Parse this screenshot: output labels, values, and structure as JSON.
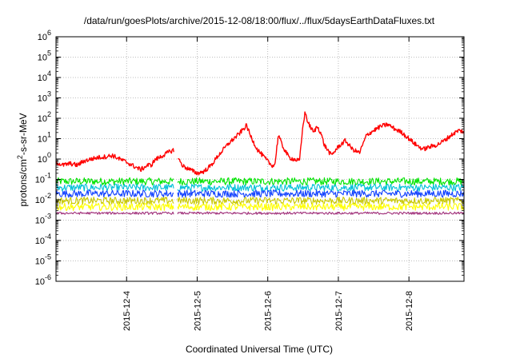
{
  "chart_data": {
    "type": "line",
    "title": "/data/run/goesPlots/archive/2015-12-08/18:00/flux/../flux/5daysEarthDataFluxes.txt",
    "xlabel": "Coordinated Universal Time (UTC)",
    "ylabel_parts": [
      "protons/cm",
      "2",
      "-s-sr-MeV"
    ],
    "yscale": "log",
    "ylim": [
      1e-06,
      1000000.0
    ],
    "xlim": [
      3.0,
      8.78
    ],
    "x_unit": "day of December 2015",
    "grid": true,
    "x_ticks": [
      {
        "x": 4,
        "label": "2015-12-4"
      },
      {
        "x": 5,
        "label": "2015-12-5"
      },
      {
        "x": 6,
        "label": "2015-12-6"
      },
      {
        "x": 7,
        "label": "2015-12-7"
      },
      {
        "x": 8,
        "label": "2015-12-8"
      }
    ],
    "y_ticks": [
      {
        "exp": -6,
        "value": 1e-06
      },
      {
        "exp": -5,
        "value": 1e-05
      },
      {
        "exp": -4,
        "value": 0.0001
      },
      {
        "exp": -3,
        "value": 0.001
      },
      {
        "exp": -2,
        "value": 0.01
      },
      {
        "exp": -1,
        "value": 0.1
      },
      {
        "exp": 0,
        "value": 1.0
      },
      {
        "exp": 1,
        "value": 10.0
      },
      {
        "exp": 2,
        "value": 100.0
      },
      {
        "exp": 3,
        "value": 1000.0
      },
      {
        "exp": 4,
        "value": 10000.0
      },
      {
        "exp": 5,
        "value": 100000.0
      },
      {
        "exp": 6,
        "value": 1000000.0
      }
    ],
    "data_gap": [
      4.67,
      4.72
    ],
    "series": [
      {
        "color": "#00e400",
        "noisy": true,
        "points": [
          [
            3.0,
            0.08
          ],
          [
            4.0,
            0.08
          ],
          [
            5.0,
            0.08
          ],
          [
            6.0,
            0.08
          ],
          [
            7.0,
            0.08
          ],
          [
            8.0,
            0.08
          ],
          [
            8.78,
            0.08
          ]
        ]
      },
      {
        "color": "#00c0d8",
        "noisy": true,
        "points": [
          [
            3.0,
            0.04
          ],
          [
            4.0,
            0.04
          ],
          [
            5.0,
            0.04
          ],
          [
            6.0,
            0.04
          ],
          [
            7.0,
            0.04
          ],
          [
            8.0,
            0.04
          ],
          [
            8.78,
            0.04
          ]
        ]
      },
      {
        "color": "#1040ff",
        "noisy": true,
        "points": [
          [
            3.0,
            0.02
          ],
          [
            4.0,
            0.02
          ],
          [
            5.0,
            0.02
          ],
          [
            6.0,
            0.02
          ],
          [
            7.0,
            0.02
          ],
          [
            8.0,
            0.02
          ],
          [
            8.78,
            0.02
          ]
        ]
      },
      {
        "color": "#c8c800",
        "noisy": true,
        "points": [
          [
            3.0,
            0.009
          ],
          [
            4.0,
            0.009
          ],
          [
            5.0,
            0.009
          ],
          [
            6.0,
            0.009
          ],
          [
            7.0,
            0.009
          ],
          [
            8.0,
            0.009
          ],
          [
            8.78,
            0.009
          ]
        ]
      },
      {
        "color": "#ffff00",
        "noisy": true,
        "points": [
          [
            3.0,
            0.0045
          ],
          [
            4.0,
            0.0045
          ],
          [
            5.0,
            0.0045
          ],
          [
            6.0,
            0.0045
          ],
          [
            7.0,
            0.0045
          ],
          [
            8.0,
            0.0045
          ],
          [
            8.78,
            0.0045
          ]
        ]
      },
      {
        "color": "#a0307a",
        "noisy": true,
        "points": [
          [
            3.0,
            0.0022
          ],
          [
            4.0,
            0.0022
          ],
          [
            5.0,
            0.0022
          ],
          [
            6.0,
            0.0022
          ],
          [
            7.0,
            0.0022
          ],
          [
            8.0,
            0.0022
          ],
          [
            8.78,
            0.0022
          ]
        ]
      },
      {
        "color": "#ff0000",
        "noisy": false,
        "points": [
          [
            3.0,
            0.7
          ],
          [
            3.1,
            0.5
          ],
          [
            3.2,
            0.6
          ],
          [
            3.3,
            0.5
          ],
          [
            3.4,
            0.8
          ],
          [
            3.5,
            1.0
          ],
          [
            3.6,
            1.2
          ],
          [
            3.7,
            1.3
          ],
          [
            3.8,
            1.5
          ],
          [
            3.9,
            1.0
          ],
          [
            4.0,
            0.7
          ],
          [
            4.1,
            0.45
          ],
          [
            4.2,
            0.3
          ],
          [
            4.3,
            0.5
          ],
          [
            4.35,
            0.5
          ],
          [
            4.4,
            0.9
          ],
          [
            4.5,
            1.4
          ],
          [
            4.6,
            2.2
          ],
          [
            4.67,
            2.8
          ],
          [
            4.72,
            1.2
          ],
          [
            4.8,
            0.45
          ],
          [
            4.9,
            0.3
          ],
          [
            5.0,
            0.2
          ],
          [
            5.1,
            0.25
          ],
          [
            5.2,
            0.5
          ],
          [
            5.3,
            1.5
          ],
          [
            5.45,
            6.0
          ],
          [
            5.6,
            18.0
          ],
          [
            5.7,
            45.0
          ],
          [
            5.75,
            15.0
          ],
          [
            5.85,
            3.0
          ],
          [
            5.95,
            1.2
          ],
          [
            6.05,
            0.5
          ],
          [
            6.1,
            0.5
          ],
          [
            6.15,
            16.0
          ],
          [
            6.2,
            5.0
          ],
          [
            6.3,
            1.2
          ],
          [
            6.4,
            0.9
          ],
          [
            6.45,
            0.8
          ],
          [
            6.5,
            50.0
          ],
          [
            6.53,
            200.0
          ],
          [
            6.57,
            60.0
          ],
          [
            6.65,
            20.0
          ],
          [
            6.7,
            40.0
          ],
          [
            6.75,
            20.0
          ],
          [
            6.8,
            5.0
          ],
          [
            6.9,
            1.5
          ],
          [
            7.0,
            4.0
          ],
          [
            7.1,
            8.0
          ],
          [
            7.2,
            3.0
          ],
          [
            7.3,
            2.0
          ],
          [
            7.4,
            15.0
          ],
          [
            7.5,
            25.0
          ],
          [
            7.6,
            40.0
          ],
          [
            7.7,
            50.0
          ],
          [
            7.8,
            30.0
          ],
          [
            7.9,
            20.0
          ],
          [
            8.0,
            10.0
          ],
          [
            8.1,
            5.0
          ],
          [
            8.2,
            3.0
          ],
          [
            8.3,
            4.0
          ],
          [
            8.4,
            5.0
          ],
          [
            8.5,
            8.0
          ],
          [
            8.6,
            15.0
          ],
          [
            8.7,
            25.0
          ],
          [
            8.78,
            22.0
          ]
        ]
      }
    ]
  }
}
